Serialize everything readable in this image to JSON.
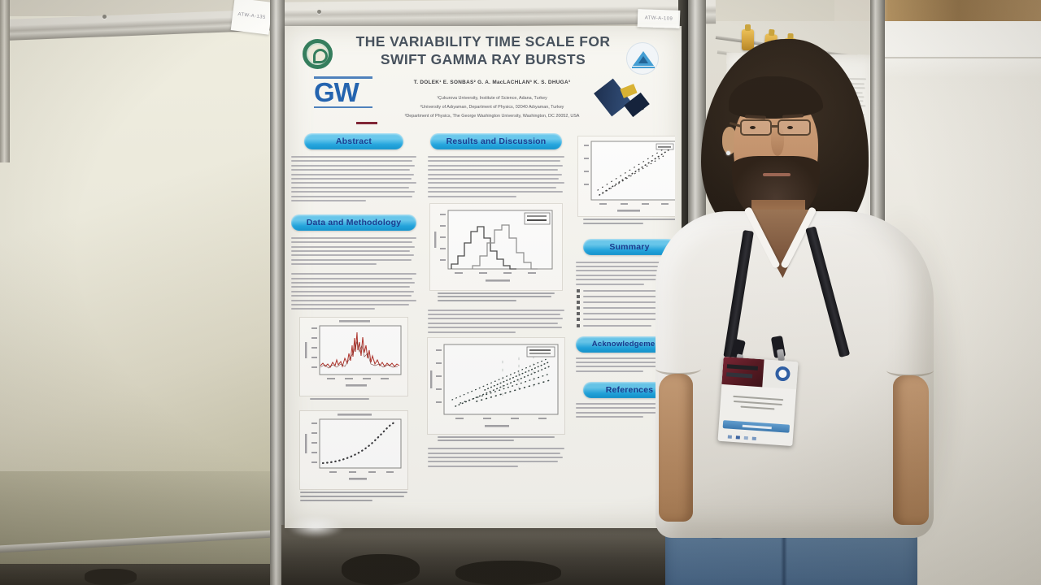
{
  "photo": {
    "left_board_tag": "ATW-A-135",
    "center_board_tag": "ATW-A-109"
  },
  "poster": {
    "title_line1": "THE VARIABILITY TIME SCALE FOR",
    "title_line2": "SWIFT GAMMA RAY BURSTS",
    "authors": "T. DOLEK¹  E. SONBAS²  G. A. MacLACHLAN³  K. S. DHUGA³",
    "affiliation1": "¹Çukurova University, Institute of Science, Adana, Turkey",
    "affiliation2": "²University of Adıyaman, Department of Physics, 02040 Adıyaman, Turkey",
    "affiliation3": "³Department of Physics, The George Washington University, Washington, DC 20052, USA",
    "gw_logo_text": "GW",
    "sections": {
      "abstract": "Abstract",
      "methodology": "Data and Methodology",
      "results": "Results and Discussion",
      "summary": "Summary",
      "acknowledgements": "Acknowledgements",
      "references": "References"
    }
  },
  "colors": {
    "section_pill_blue": "#1fa5e0",
    "section_pill_text": "#16388f",
    "poster_title_text": "#414c58",
    "gw_blue": "#1d5fae",
    "lightcurve_red": "#b13028",
    "lanyard_black": "#17171d",
    "jeans_blue": "#61809f",
    "clip_yellow": "#cf9c33"
  }
}
